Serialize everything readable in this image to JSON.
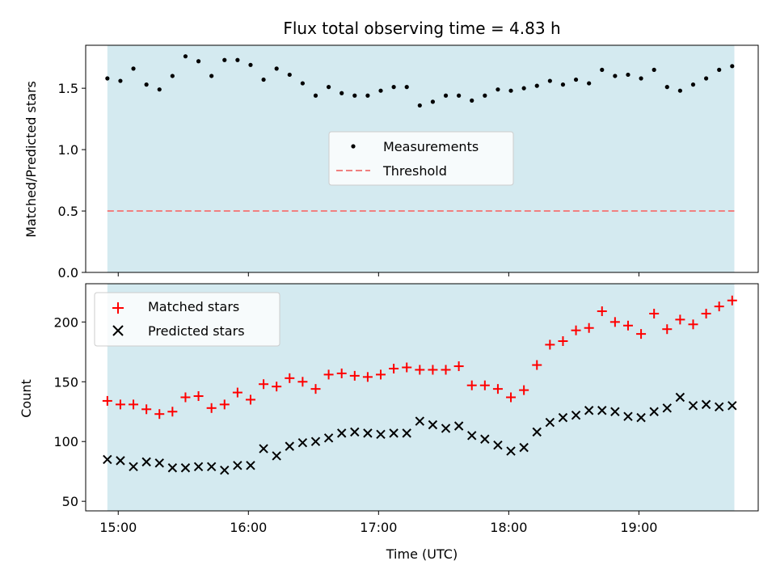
{
  "chart_data": [
    {
      "type": "scatter",
      "title": "Flux total observing time = 4.83 h",
      "xlabel": "",
      "ylabel": "Matched/Predicted stars",
      "ylim": [
        0,
        1.85
      ],
      "yticks": [
        0.0,
        0.5,
        1.0,
        1.5
      ],
      "ytick_labels": [
        "0.0",
        "0.5",
        "1.0",
        "1.5"
      ],
      "xlim": [
        "14:45",
        "19:55"
      ],
      "shaded_interval": [
        "14:55",
        "19:44"
      ],
      "shade_color": "#d4eaf0",
      "threshold": 0.5,
      "series": [
        {
          "name": "Measurements",
          "marker": "dot",
          "color": "#000000",
          "x": [
            "14:55",
            "15:01",
            "15:07",
            "15:13",
            "15:19",
            "15:25",
            "15:31",
            "15:37",
            "15:43",
            "15:49",
            "15:55",
            "16:01",
            "16:07",
            "16:13",
            "16:19",
            "16:25",
            "16:31",
            "16:37",
            "16:43",
            "16:49",
            "16:55",
            "17:01",
            "17:07",
            "17:13",
            "17:19",
            "17:25",
            "17:31",
            "17:37",
            "17:43",
            "17:49",
            "17:55",
            "18:01",
            "18:07",
            "18:13",
            "18:19",
            "18:25",
            "18:31",
            "18:37",
            "18:43",
            "18:49",
            "18:55",
            "19:01",
            "19:07",
            "19:13",
            "19:19",
            "19:25",
            "19:31",
            "19:37",
            "19:43"
          ],
          "values": [
            1.58,
            1.56,
            1.66,
            1.53,
            1.49,
            1.6,
            1.76,
            1.72,
            1.6,
            1.73,
            1.73,
            1.69,
            1.57,
            1.66,
            1.61,
            1.54,
            1.44,
            1.51,
            1.46,
            1.44,
            1.44,
            1.48,
            1.51,
            1.51,
            1.36,
            1.39,
            1.44,
            1.44,
            1.4,
            1.44,
            1.49,
            1.48,
            1.5,
            1.52,
            1.56,
            1.53,
            1.57,
            1.54,
            1.65,
            1.6,
            1.61,
            1.58,
            1.65,
            1.51,
            1.48,
            1.53,
            1.58,
            1.65,
            1.68
          ]
        },
        {
          "name": "Threshold",
          "marker": "dashed-line",
          "color": "#f08080"
        }
      ],
      "legend": "center"
    },
    {
      "type": "scatter",
      "title": "",
      "xlabel": "Time (UTC)",
      "ylabel": "Count",
      "ylim": [
        42,
        232
      ],
      "yticks": [
        50,
        100,
        150,
        200
      ],
      "ytick_labels": [
        "50",
        "100",
        "150",
        "200"
      ],
      "xticks": [
        "15:00",
        "16:00",
        "17:00",
        "18:00",
        "19:00"
      ],
      "xtick_labels": [
        "15:00",
        "16:00",
        "17:00",
        "18:00",
        "19:00"
      ],
      "xlim": [
        "14:45",
        "19:55"
      ],
      "shaded_interval": [
        "14:55",
        "19:44"
      ],
      "shade_color": "#d4eaf0",
      "series": [
        {
          "name": "Matched stars",
          "marker": "plus",
          "color": "#ff0000",
          "x": [
            "14:55",
            "15:01",
            "15:07",
            "15:13",
            "15:19",
            "15:25",
            "15:31",
            "15:37",
            "15:43",
            "15:49",
            "15:55",
            "16:01",
            "16:07",
            "16:13",
            "16:19",
            "16:25",
            "16:31",
            "16:37",
            "16:43",
            "16:49",
            "16:55",
            "17:01",
            "17:07",
            "17:13",
            "17:19",
            "17:25",
            "17:31",
            "17:37",
            "17:43",
            "17:49",
            "17:55",
            "18:01",
            "18:07",
            "18:13",
            "18:19",
            "18:25",
            "18:31",
            "18:37",
            "18:43",
            "18:49",
            "18:55",
            "19:01",
            "19:07",
            "19:13",
            "19:19",
            "19:25",
            "19:31",
            "19:37",
            "19:43"
          ],
          "values": [
            134,
            131,
            131,
            127,
            123,
            125,
            137,
            138,
            128,
            131,
            141,
            135,
            148,
            146,
            153,
            150,
            144,
            156,
            157,
            155,
            154,
            156,
            161,
            162,
            160,
            160,
            160,
            163,
            147,
            147,
            144,
            137,
            143,
            164,
            181,
            184,
            193,
            195,
            209,
            200,
            197,
            190,
            207,
            194,
            202,
            198,
            207,
            213,
            218
          ]
        },
        {
          "name": "Predicted stars",
          "marker": "x",
          "color": "#000000",
          "x": [
            "14:55",
            "15:01",
            "15:07",
            "15:13",
            "15:19",
            "15:25",
            "15:31",
            "15:37",
            "15:43",
            "15:49",
            "15:55",
            "16:01",
            "16:07",
            "16:13",
            "16:19",
            "16:25",
            "16:31",
            "16:37",
            "16:43",
            "16:49",
            "16:55",
            "17:01",
            "17:07",
            "17:13",
            "17:19",
            "17:25",
            "17:31",
            "17:37",
            "17:43",
            "17:49",
            "17:55",
            "18:01",
            "18:07",
            "18:13",
            "18:19",
            "18:25",
            "18:31",
            "18:37",
            "18:43",
            "18:49",
            "18:55",
            "19:01",
            "19:07",
            "19:13",
            "19:19",
            "19:25",
            "19:31",
            "19:37",
            "19:43"
          ],
          "values": [
            85,
            84,
            79,
            83,
            82,
            78,
            78,
            79,
            79,
            76,
            80,
            80,
            94,
            88,
            96,
            99,
            100,
            103,
            107,
            108,
            107,
            106,
            107,
            107,
            117,
            114,
            111,
            113,
            105,
            102,
            97,
            92,
            95,
            108,
            116,
            120,
            122,
            126,
            126,
            125,
            121,
            120,
            125,
            128,
            137,
            130,
            131,
            129,
            130
          ]
        }
      ],
      "legend": "top-left"
    }
  ]
}
